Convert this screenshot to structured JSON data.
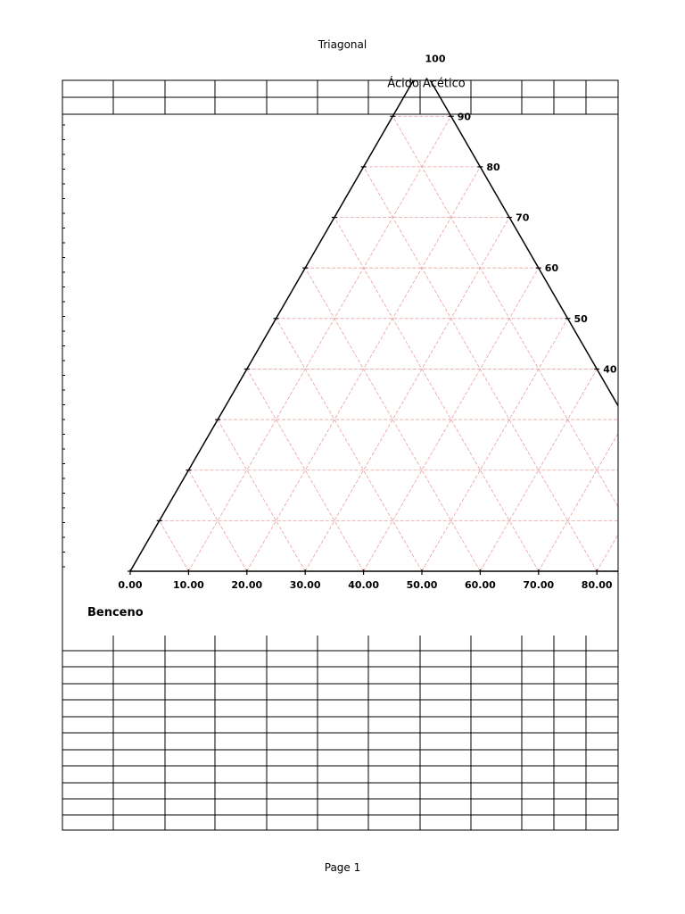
{
  "page": {
    "header": "Triagonal",
    "footer": "Page 1"
  },
  "chart_data": {
    "type": "ternary",
    "title": "",
    "grid": true,
    "grid_step": 10,
    "axes": {
      "top": {
        "label": "Ácido Acético",
        "ticks": [
          "100",
          "90",
          "80",
          "70",
          "60",
          "50",
          "40"
        ]
      },
      "bottom": {
        "label": "Benceno",
        "ticks": [
          "0.00",
          "10.00",
          "20.00",
          "30.00",
          "40.00",
          "50.00",
          "60.00",
          "70.00",
          "80.00"
        ]
      }
    },
    "bottom_tick_values": [
      0,
      10,
      20,
      30,
      40,
      50,
      60,
      70,
      80
    ],
    "right_tick_values": [
      90,
      80,
      70,
      60,
      50,
      40
    ],
    "series": []
  },
  "colors": {
    "grid": "#e8a0a0",
    "axis": "#000000",
    "table_lines": "#000000"
  }
}
